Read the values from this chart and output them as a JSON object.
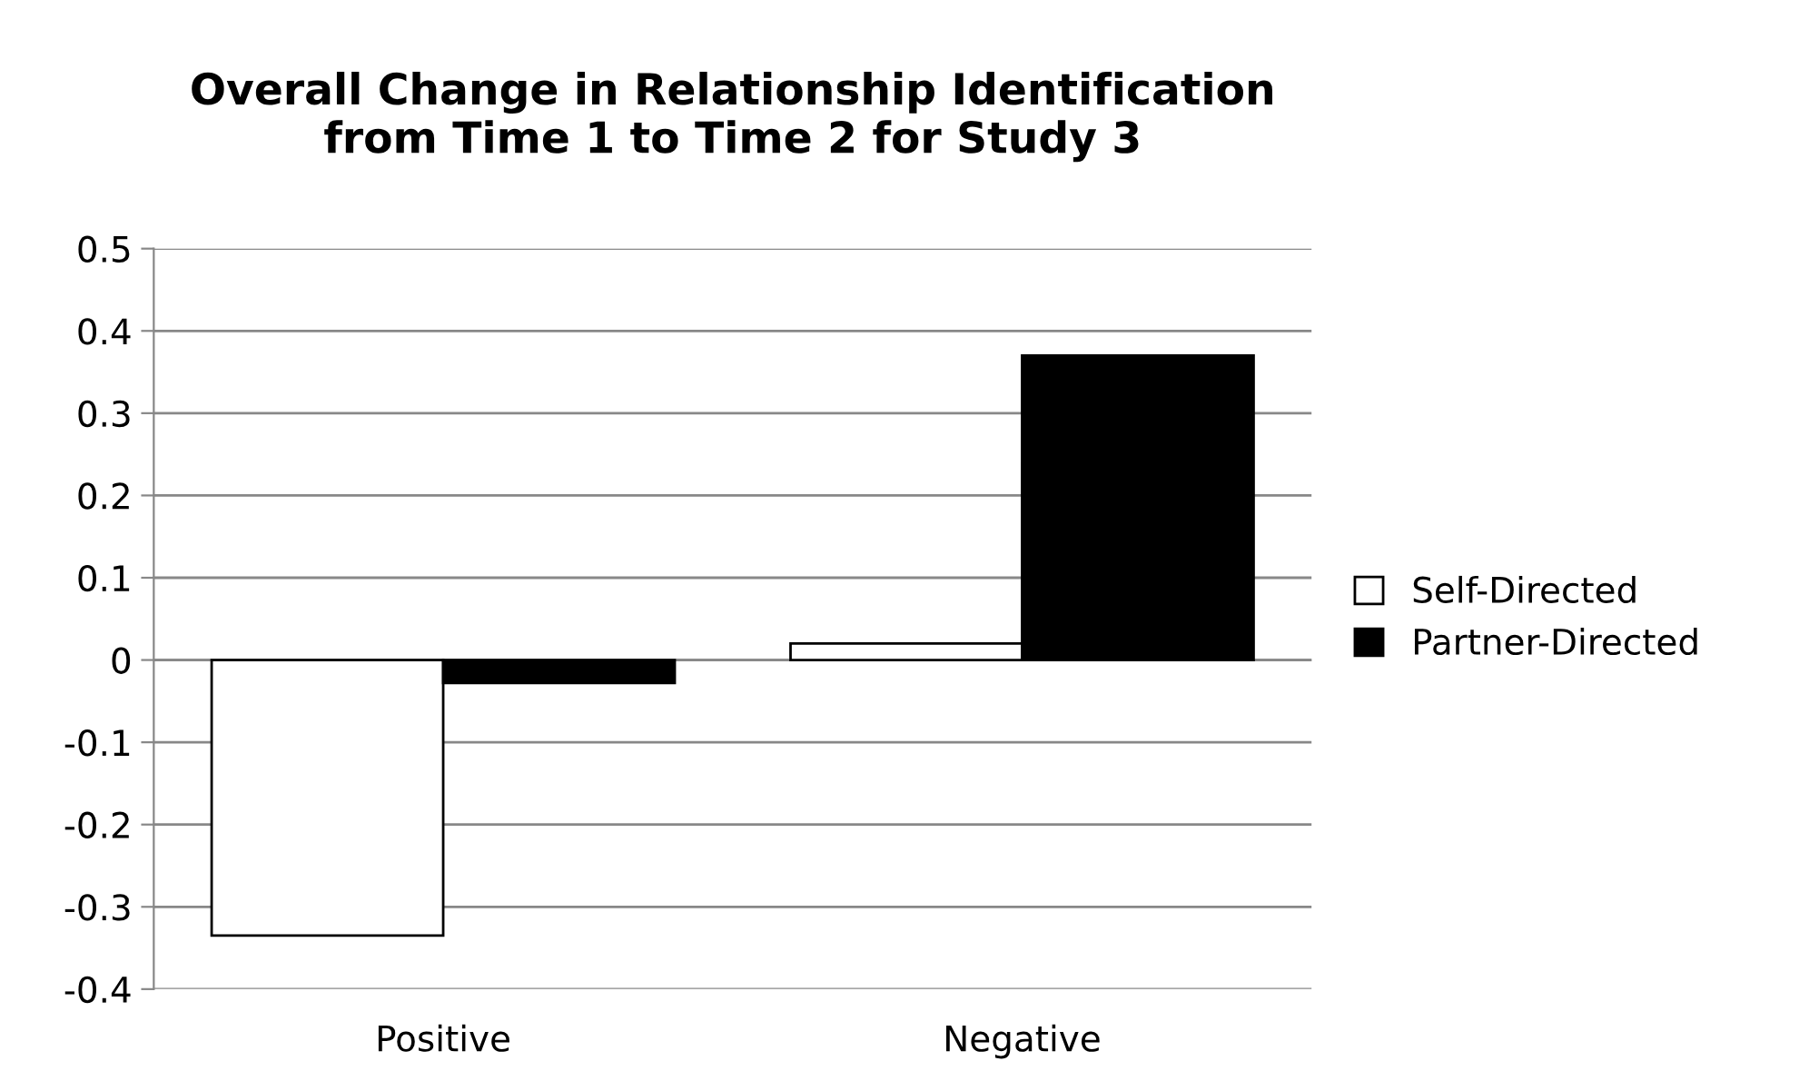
{
  "chart_data": {
    "type": "bar",
    "title": "Overall Change in Relationship Identification\nfrom Time 1 to Time 2 for Study 3",
    "categories": [
      "Positive",
      "Negative"
    ],
    "series": [
      {
        "name": "Self-Directed",
        "color": "#ffffff",
        "values": [
          -0.335,
          0.02
        ]
      },
      {
        "name": "Partner-Directed",
        "color": "#000000",
        "values": [
          -0.028,
          0.37
        ]
      }
    ],
    "ylim": [
      -0.4,
      0.5
    ],
    "yticks": [
      0.5,
      0.4,
      0.3,
      0.2,
      0.1,
      0,
      -0.1,
      -0.2,
      -0.3,
      -0.4
    ],
    "grid": "y",
    "legend": "right"
  }
}
